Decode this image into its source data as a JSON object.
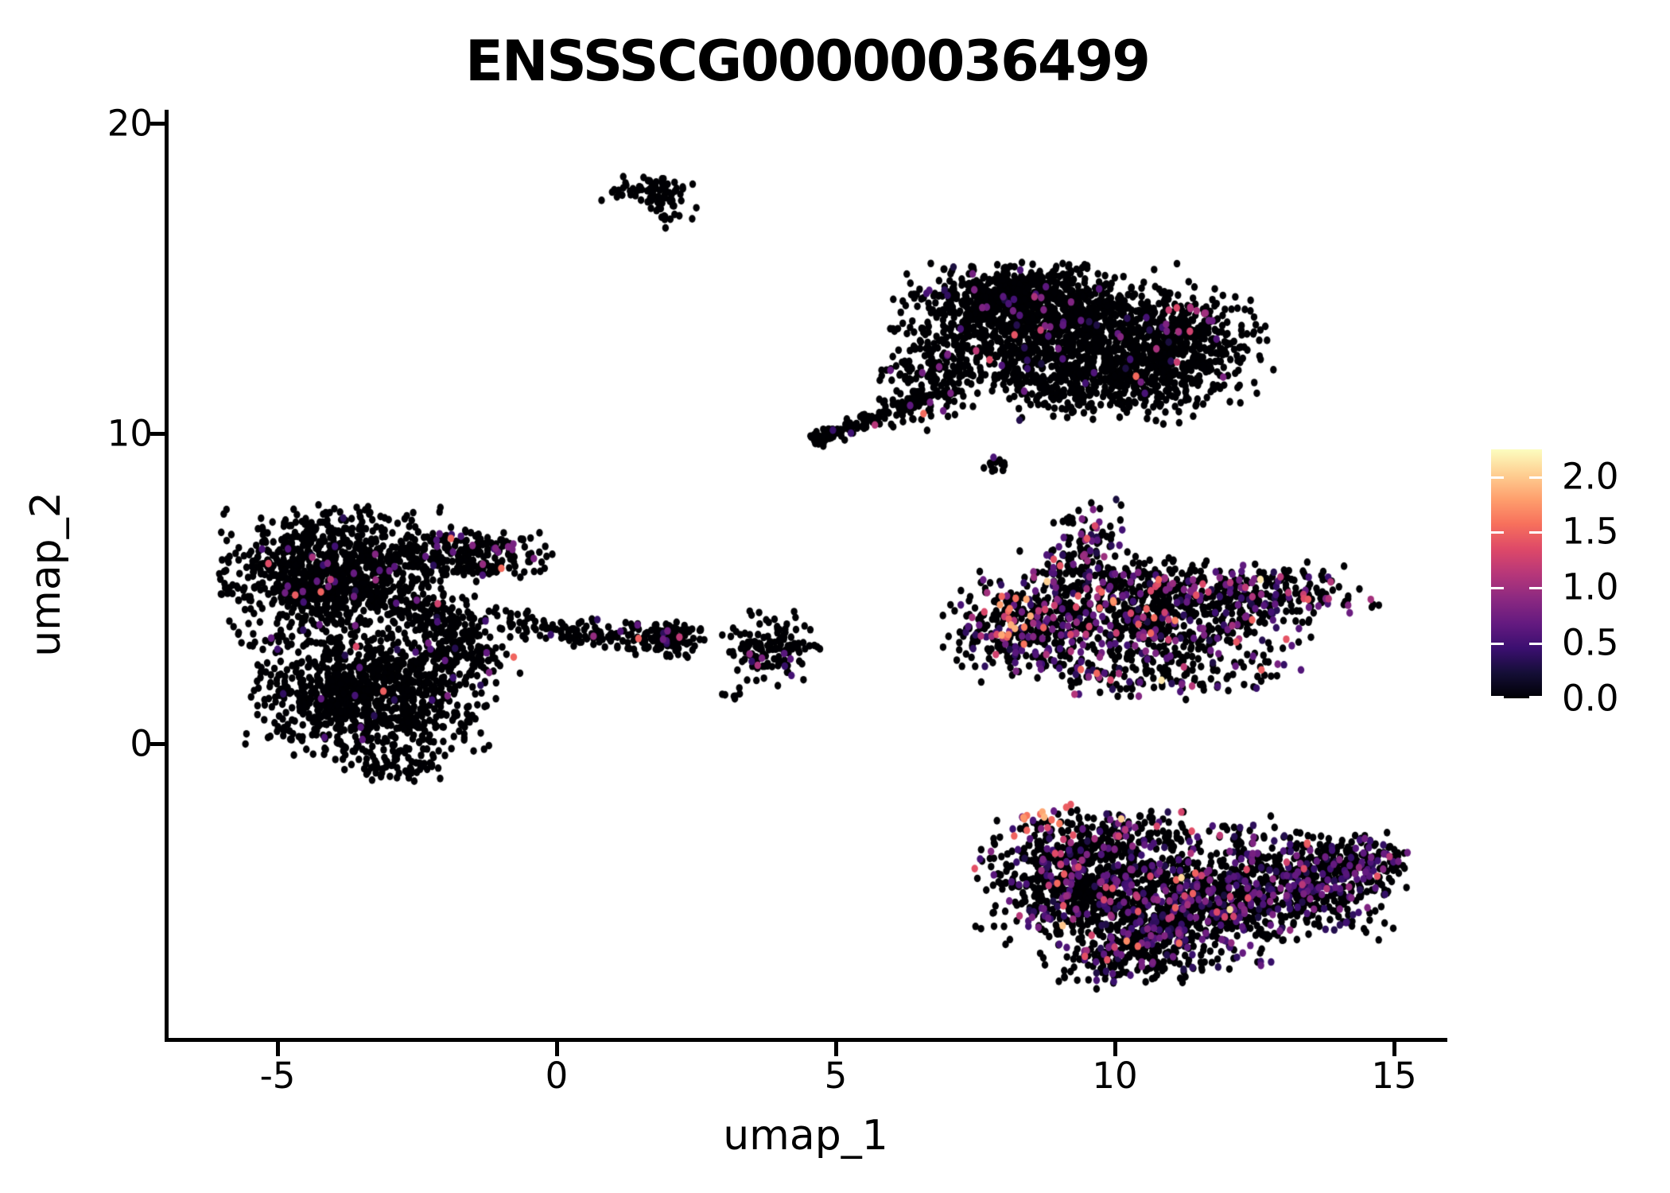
{
  "title": "ENSSSCG00000036499",
  "axes": {
    "x": {
      "label": "umap_1",
      "tick_labels": [
        "-5",
        "0",
        "5",
        "10",
        "15"
      ],
      "tick_values": [
        -5,
        0,
        5,
        10,
        15
      ]
    },
    "y": {
      "label": "umap_2",
      "tick_labels": [
        "0",
        "10",
        "20"
      ],
      "tick_values": [
        0,
        10,
        20
      ]
    }
  },
  "colorbar": {
    "tick_labels": [
      "2.0",
      "1.5",
      "1.0",
      "0.5",
      "0.0"
    ],
    "tick_values": [
      2.0,
      1.5,
      1.0,
      0.5,
      0.0
    ],
    "vmin": 0.0,
    "vmax": 2.24,
    "stops": [
      {
        "t": 0.0,
        "c": "#000004"
      },
      {
        "t": 0.1,
        "c": "#140e36"
      },
      {
        "t": 0.2,
        "c": "#3b0f70"
      },
      {
        "t": 0.3,
        "c": "#641a80"
      },
      {
        "t": 0.4,
        "c": "#8c2981"
      },
      {
        "t": 0.5,
        "c": "#b73779"
      },
      {
        "t": 0.6,
        "c": "#de4968"
      },
      {
        "t": 0.7,
        "c": "#f7705c"
      },
      {
        "t": 0.8,
        "c": "#fe9f6d"
      },
      {
        "t": 0.9,
        "c": "#fecf92"
      },
      {
        "t": 1.0,
        "c": "#fcfdbf"
      }
    ]
  },
  "chart_data": {
    "type": "scatter",
    "title": "ENSSSCG00000036499",
    "xlabel": "umap_1",
    "ylabel": "umap_2",
    "xlim": [
      -7.0,
      15.9
    ],
    "ylim": [
      -9.5,
      20.4
    ],
    "colormap": "magma",
    "legend_position": "right",
    "grid": false,
    "seed": 20240613,
    "point_rx": 4.2,
    "point_ry": 4.8,
    "value_ranges": {
      "low": [
        0.25,
        0.85
      ],
      "mid": [
        0.85,
        1.55
      ],
      "high": [
        1.55,
        2.15
      ]
    },
    "clusters": [
      {
        "name": "top-small-cluster",
        "mix": {
          "zero": 1.0,
          "low": 0.0,
          "mid": 0.0,
          "high": 0.0
        },
        "blobs": [
          {
            "cx": 1.8,
            "cy": 17.8,
            "sx": 0.45,
            "sy": 0.28,
            "n": 65
          },
          {
            "cx": 2.05,
            "cy": 17.15,
            "sx": 0.18,
            "sy": 0.3,
            "n": 22
          }
        ],
        "hotspots": []
      },
      {
        "name": "top-right-cluster",
        "mix": {
          "zero": 0.975,
          "low": 0.021,
          "mid": 0.004,
          "high": 0.0
        },
        "blobs": [
          {
            "cx": 8.8,
            "cy": 13.3,
            "sx": 1.25,
            "sy": 0.95,
            "n": 1250
          },
          {
            "cx": 8.3,
            "cy": 14.5,
            "sx": 0.85,
            "sy": 0.45,
            "n": 350
          },
          {
            "cx": 11.15,
            "cy": 12.8,
            "sx": 0.75,
            "sy": 0.85,
            "n": 430
          },
          {
            "cx": 9.9,
            "cy": 11.5,
            "sx": 0.95,
            "sy": 0.55,
            "n": 300
          },
          {
            "cx": 6.7,
            "cy": 11.7,
            "sx": 0.4,
            "sy": 0.7,
            "n": 150
          },
          {
            "line": [
              4.63,
              9.75,
              6.55,
              11.15
            ],
            "jitter": 0.12,
            "n": 120
          },
          {
            "cx": 7.9,
            "cy": 8.95,
            "sx": 0.12,
            "sy": 0.12,
            "n": 12
          }
        ],
        "hotspots": [
          {
            "cx": 11.25,
            "cy": 13.6,
            "r": 0.5,
            "n": 13,
            "vmin": 0.4,
            "vmax": 1.3
          },
          {
            "cx": 6.55,
            "cy": 10.6,
            "r": 0.05,
            "n": 1,
            "vmin": 1.5,
            "vmax": 1.6
          },
          {
            "cx": 5.75,
            "cy": 10.3,
            "r": 0.06,
            "n": 1,
            "vmin": 1.1,
            "vmax": 1.3
          },
          {
            "cx": 6.35,
            "cy": 10.9,
            "r": 0.06,
            "n": 1,
            "vmin": 0.5,
            "vmax": 0.7
          },
          {
            "cx": 7.0,
            "cy": 12.6,
            "r": 0.1,
            "n": 2,
            "vmin": 0.5,
            "vmax": 0.8
          },
          {
            "cx": 7.86,
            "cy": 9.2,
            "r": 0.05,
            "n": 1,
            "vmin": 0.5,
            "vmax": 0.7
          }
        ]
      },
      {
        "name": "left-cluster",
        "mix": {
          "zero": 0.976,
          "low": 0.021,
          "mid": 0.003,
          "high": 0.0
        },
        "blobs": [
          {
            "cx": -4.05,
            "cy": 5.4,
            "sx": 0.9,
            "sy": 1.0,
            "n": 1050
          },
          {
            "cx": -1.7,
            "cy": 6.1,
            "sx": 0.75,
            "sy": 0.4,
            "n": 240
          },
          {
            "cx": -3.35,
            "cy": 1.7,
            "sx": 1.0,
            "sy": 0.9,
            "n": 980
          },
          {
            "cx": -1.8,
            "cy": 3.2,
            "sx": 0.55,
            "sy": 0.55,
            "n": 160
          },
          {
            "cx": -2.2,
            "cy": 4.3,
            "sx": 0.5,
            "sy": 0.4,
            "n": 80
          },
          {
            "cx": -2.9,
            "cy": -0.6,
            "sx": 0.55,
            "sy": 0.35,
            "n": 80
          },
          {
            "line": [
              -1.15,
              4.05,
              0.35,
              3.55
            ],
            "jitter": 0.18,
            "n": 28
          }
        ],
        "hotspots": [
          {
            "cx": -0.95,
            "cy": 6.35,
            "r": 0.22,
            "n": 6,
            "vmin": 0.5,
            "vmax": 0.9
          },
          {
            "cx": -2.0,
            "cy": 6.55,
            "r": 0.4,
            "n": 4,
            "vmin": 0.4,
            "vmax": 0.7
          },
          {
            "cx": -4.35,
            "cy": 6.05,
            "r": 0.05,
            "n": 1,
            "vmin": 1.0,
            "vmax": 1.2
          },
          {
            "cx": -0.8,
            "cy": 2.75,
            "r": 0.05,
            "n": 1,
            "vmin": 1.4,
            "vmax": 1.6
          }
        ]
      },
      {
        "name": "center-small-clusters",
        "mix": {
          "zero": 0.95,
          "low": 0.04,
          "mid": 0.01,
          "high": 0.0
        },
        "blobs": [
          {
            "line": [
              -0.1,
              3.6,
              1.35,
              3.45
            ],
            "jitter": 0.22,
            "n": 85
          },
          {
            "cx": 1.95,
            "cy": 3.4,
            "sx": 0.33,
            "sy": 0.27,
            "n": 130
          },
          {
            "cx": 3.85,
            "cy": 3.05,
            "sx": 0.4,
            "sy": 0.55,
            "n": 135
          },
          {
            "cx": 3.15,
            "cy": 1.55,
            "sx": 0.08,
            "sy": 0.08,
            "n": 6
          }
        ],
        "hotspots": [
          {
            "cx": 1.93,
            "cy": 3.3,
            "r": 0.05,
            "n": 1,
            "vmin": 0.5,
            "vmax": 0.7
          },
          {
            "cx": 3.6,
            "cy": 2.75,
            "r": 0.25,
            "n": 3,
            "vmin": 0.5,
            "vmax": 1.1
          }
        ]
      },
      {
        "name": "right-middle-cluster",
        "mix": {
          "zero": 0.77,
          "low": 0.17,
          "mid": 0.055,
          "high": 0.005
        },
        "blobs": [
          {
            "cx": 10.4,
            "cy": 3.9,
            "sx": 1.4,
            "sy": 0.85,
            "n": 680
          },
          {
            "cx": 8.15,
            "cy": 3.7,
            "sx": 0.55,
            "sy": 0.75,
            "n": 200
          },
          {
            "cx": 9.45,
            "cy": 6.3,
            "sx": 0.3,
            "sy": 0.75,
            "n": 110
          },
          {
            "cx": 10.0,
            "cy": 5.3,
            "sx": 0.9,
            "sy": 0.5,
            "n": 130
          },
          {
            "cx": 12.5,
            "cy": 4.8,
            "sx": 1.0,
            "sy": 0.5,
            "n": 260
          },
          {
            "cx": 10.6,
            "cy": 2.2,
            "sx": 1.2,
            "sy": 0.35,
            "n": 120
          }
        ],
        "hotspots": [
          {
            "cx": 8.3,
            "cy": 3.6,
            "r": 0.55,
            "n": 11,
            "vmin": 1.4,
            "vmax": 2.1
          },
          {
            "cx": 8.15,
            "cy": 4.55,
            "r": 0.3,
            "n": 5,
            "vmin": 1.2,
            "vmax": 2.0
          },
          {
            "cx": 9.5,
            "cy": 7.3,
            "r": 0.3,
            "n": 2,
            "vmin": 0.5,
            "vmax": 0.8
          },
          {
            "cx": 10.0,
            "cy": 4.6,
            "r": 0.1,
            "n": 2,
            "vmin": 1.5,
            "vmax": 1.8
          }
        ]
      },
      {
        "name": "bottom-right-cluster",
        "mix": {
          "zero": 0.81,
          "low": 0.155,
          "mid": 0.033,
          "high": 0.002
        },
        "blobs": [
          {
            "cx": 9.4,
            "cy": -4.4,
            "sx": 0.85,
            "sy": 1.0,
            "n": 680
          },
          {
            "cx": 10.9,
            "cy": -5.6,
            "sx": 0.95,
            "sy": 0.85,
            "n": 620
          },
          {
            "cx": 12.9,
            "cy": -4.5,
            "sx": 1.0,
            "sy": 0.8,
            "n": 680,
            "mix": {
              "zero": 0.7,
              "low": 0.26,
              "mid": 0.04,
              "high": 0.0
            }
          },
          {
            "cx": 14.35,
            "cy": -3.95,
            "sx": 0.45,
            "sy": 0.45,
            "n": 180,
            "mix": {
              "zero": 0.68,
              "low": 0.28,
              "mid": 0.04,
              "high": 0.0
            }
          },
          {
            "cx": 10.5,
            "cy": -2.9,
            "sx": 1.1,
            "sy": 0.35,
            "n": 130
          },
          {
            "cx": 10.2,
            "cy": -7.0,
            "sx": 0.7,
            "sy": 0.45,
            "n": 140
          }
        ],
        "hotspots": [
          {
            "cx": 8.75,
            "cy": -2.55,
            "r": 0.45,
            "n": 10,
            "vmin": 1.2,
            "vmax": 2.1
          },
          {
            "cx": 9.15,
            "cy": -2.0,
            "r": 0.1,
            "n": 2,
            "vmin": 1.4,
            "vmax": 1.7
          },
          {
            "cx": 13.55,
            "cy": -3.2,
            "r": 0.15,
            "n": 2,
            "vmin": 1.3,
            "vmax": 1.6
          }
        ]
      }
    ]
  }
}
